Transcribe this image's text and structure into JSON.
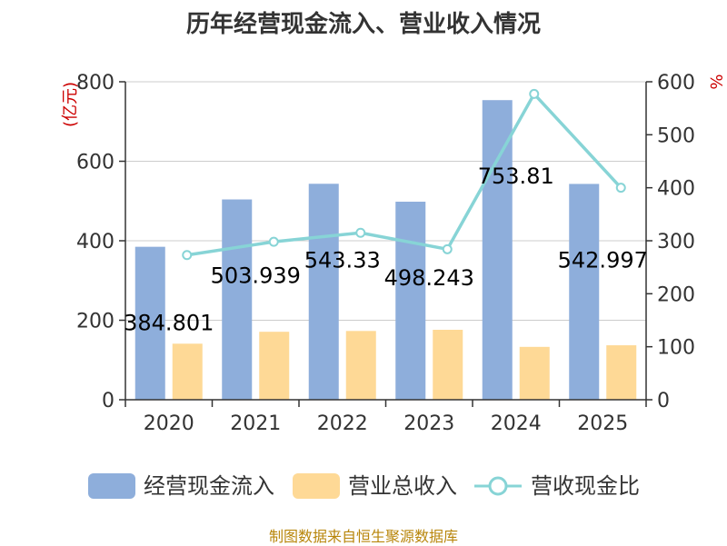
{
  "title": "历年经营现金流入、营业收入情况",
  "source": "制图数据来自恒生聚源数据库",
  "colors": {
    "cash_inflow": "#8eaedb",
    "revenue": "#fed996",
    "ratio": "#87d4d6",
    "unit": "#cc0000",
    "axis": "#333333",
    "grid": "#cccccc"
  },
  "chart_data": {
    "type": "bar",
    "categories": [
      "2020",
      "2021",
      "2022",
      "2023",
      "2024",
      "2025"
    ],
    "series": [
      {
        "name": "经营现金流入",
        "axis": "left",
        "type": "bar",
        "values": [
          384.801,
          503.939,
          543.33,
          498.243,
          753.81,
          542.997
        ]
      },
      {
        "name": "营业总收入",
        "axis": "left",
        "type": "bar",
        "values": [
          141,
          171,
          173,
          176,
          133,
          137
        ]
      },
      {
        "name": "营收现金比",
        "axis": "right",
        "type": "line",
        "values": [
          273,
          298,
          315,
          284,
          577,
          400
        ]
      }
    ],
    "data_labels": [
      "384.801",
      "503.939",
      "543.33",
      "498.243",
      "753.81",
      "542.997"
    ],
    "left_axis": {
      "unit": "(亿元)",
      "ylim": [
        0,
        800
      ],
      "ticks": [
        "0",
        "200",
        "400",
        "600",
        "800"
      ]
    },
    "right_axis": {
      "unit": "%",
      "ylim": [
        0,
        600
      ],
      "ticks": [
        "0",
        "100",
        "200",
        "300",
        "400",
        "500",
        "600"
      ]
    },
    "grid": true,
    "legend_position": "bottom"
  }
}
